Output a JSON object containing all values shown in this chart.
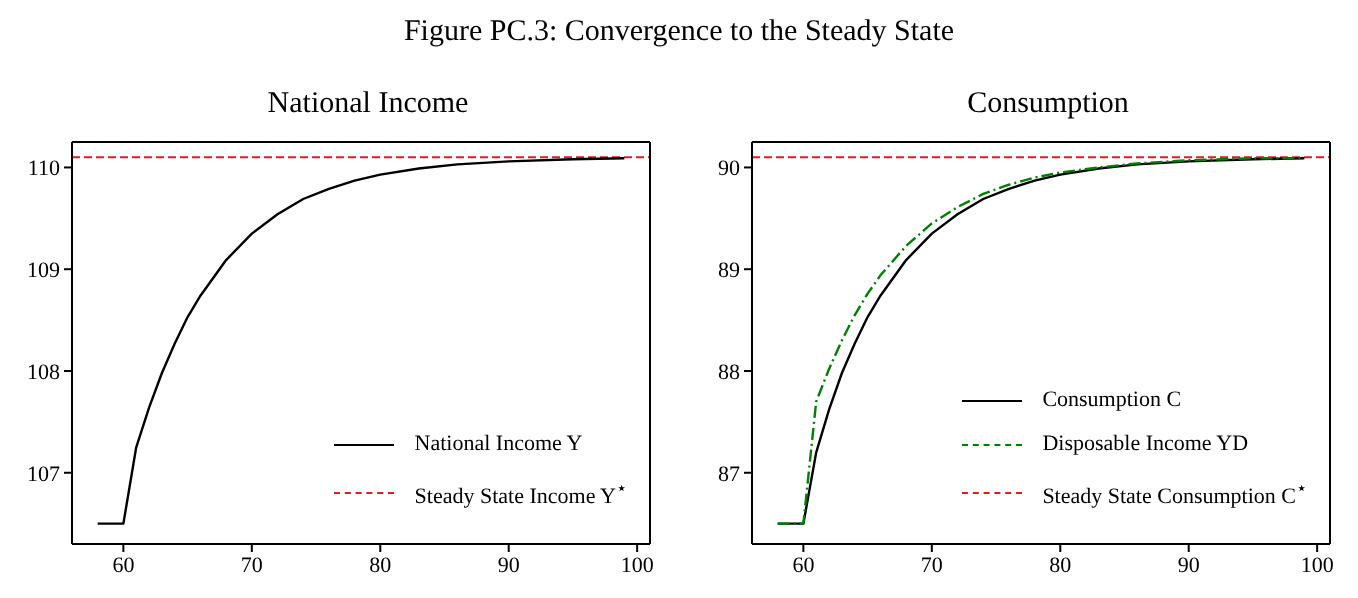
{
  "chart_data": [
    {
      "type": "line",
      "title": "National Income",
      "annotations": [
        "Figure PC.3: Convergence to the Steady State"
      ],
      "x": [
        58,
        59,
        60,
        61,
        62,
        63,
        64,
        65,
        66,
        68,
        70,
        72,
        74,
        76,
        78,
        80,
        83,
        86,
        90,
        95,
        99
      ],
      "series": [
        {
          "name": "National Income Y",
          "color": "#000000",
          "line_style": "solid",
          "values": [
            106.5,
            106.5,
            106.5,
            107.25,
            107.64,
            107.98,
            108.27,
            108.53,
            108.74,
            109.09,
            109.35,
            109.54,
            109.69,
            109.79,
            109.87,
            109.93,
            109.99,
            110.03,
            110.06,
            110.08,
            110.09
          ]
        }
      ],
      "ref_lines": [
        {
          "axis": "y",
          "value": 110.1,
          "label": "Steady State Income Y$^{⋆}$",
          "color": "#e41a1c",
          "line_style": "dashed"
        }
      ],
      "xlim": [
        56,
        101
      ],
      "xticks": [
        60,
        70,
        80,
        90,
        100
      ],
      "ylim": [
        106.3,
        110.25
      ],
      "yticks": [
        107,
        108,
        109,
        110
      ],
      "grid": false,
      "legend": "bottom right"
    },
    {
      "type": "line",
      "title": "Consumption",
      "x": [
        58,
        59,
        60,
        61,
        62,
        63,
        64,
        65,
        66,
        68,
        70,
        72,
        74,
        76,
        78,
        80,
        83,
        86,
        90,
        95,
        99
      ],
      "series": [
        {
          "name": "Consumption C",
          "color": "#000000",
          "line_style": "solid",
          "values": [
            86.5,
            86.5,
            86.5,
            87.2,
            87.62,
            87.98,
            88.27,
            88.53,
            88.74,
            89.09,
            89.35,
            89.54,
            89.69,
            89.79,
            89.87,
            89.93,
            89.99,
            90.03,
            90.06,
            90.08,
            90.09
          ]
        },
        {
          "name": "Disposable Income YD",
          "color": "#008000",
          "line_style": "dashdot",
          "values": [
            86.5,
            86.5,
            86.5,
            87.7,
            88.02,
            88.3,
            88.55,
            88.76,
            88.94,
            89.23,
            89.45,
            89.61,
            89.74,
            89.83,
            89.9,
            89.95,
            90.0,
            90.04,
            90.07,
            90.09,
            90.09
          ]
        }
      ],
      "ref_lines": [
        {
          "axis": "y",
          "value": 90.1,
          "label": "Steady State Consumption C$^{⋆}$",
          "color": "#e41a1c",
          "line_style": "dashed"
        }
      ],
      "xlim": [
        56,
        101
      ],
      "xticks": [
        60,
        70,
        80,
        90,
        100
      ],
      "ylim": [
        86.3,
        90.25
      ],
      "yticks": [
        87,
        88,
        89,
        90
      ],
      "grid": false,
      "legend": "bottom right"
    }
  ]
}
